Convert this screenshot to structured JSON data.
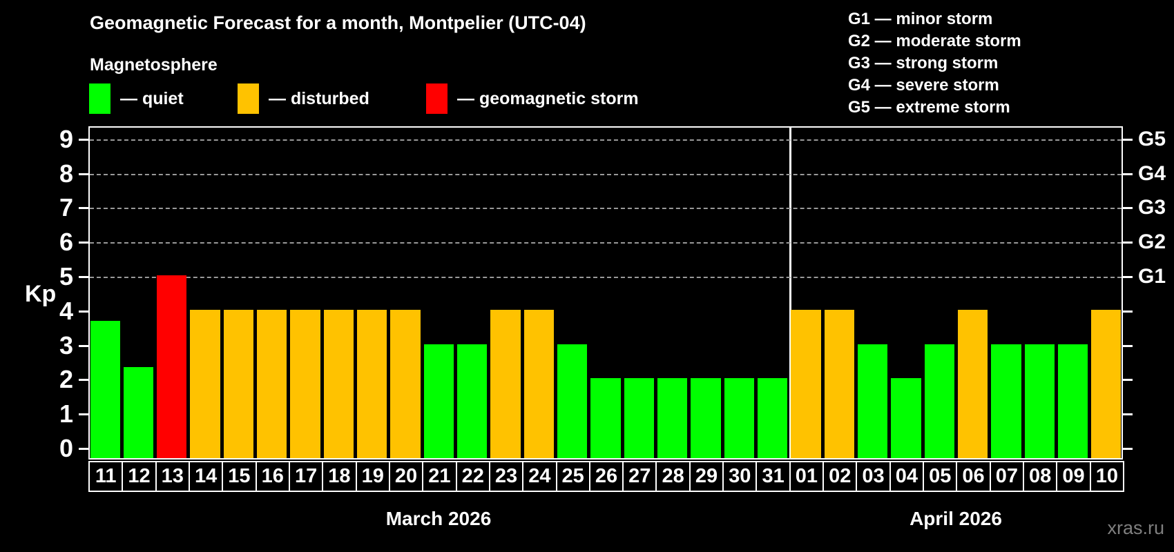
{
  "title": "Geomagnetic Forecast for a month, Montpelier (UTC-04)",
  "subtitle": "Magnetosphere",
  "watermark": "xras.ru",
  "legend": {
    "items": [
      {
        "state": "quiet",
        "label": "— quiet",
        "color": "#00ff00"
      },
      {
        "state": "disturbed",
        "label": "— disturbed",
        "color": "#ffc200"
      },
      {
        "state": "storm",
        "label": "— geomagnetic storm",
        "color": "#ff0000"
      }
    ]
  },
  "g_legend": {
    "items": [
      "G1 — minor storm",
      "G2 — moderate storm",
      "G3 — strong storm",
      "G4 — severe storm",
      "G5 — extreme storm"
    ]
  },
  "chart_data": {
    "type": "bar",
    "title": "Geomagnetic Forecast for a month, Montpelier (UTC-04)",
    "subtitle": "Magnetosphere",
    "ylabel": "Kp",
    "ylim": [
      0,
      9
    ],
    "yticks": [
      0,
      1,
      2,
      3,
      4,
      5,
      6,
      7,
      8,
      9
    ],
    "grid_levels": [
      5,
      6,
      7,
      8,
      9
    ],
    "grid": "dashed horizontal at G-storm levels only",
    "legend_position": "top-left",
    "right_axis": [
      {
        "kp": 5,
        "label": "G1"
      },
      {
        "kp": 6,
        "label": "G2"
      },
      {
        "kp": 7,
        "label": "G3"
      },
      {
        "kp": 8,
        "label": "G4"
      },
      {
        "kp": 9,
        "label": "G5"
      }
    ],
    "colors": {
      "quiet": "#00ff00",
      "disturbed": "#ffc200",
      "storm": "#ff0000"
    },
    "months": [
      {
        "label": "March 2026",
        "days": 21
      },
      {
        "label": "April 2026",
        "days": 10
      }
    ],
    "bars": [
      {
        "day": "11",
        "kp": 3.67,
        "state": "quiet"
      },
      {
        "day": "12",
        "kp": 2.33,
        "state": "quiet"
      },
      {
        "day": "13",
        "kp": 5,
        "state": "storm"
      },
      {
        "day": "14",
        "kp": 4,
        "state": "disturbed"
      },
      {
        "day": "15",
        "kp": 4,
        "state": "disturbed"
      },
      {
        "day": "16",
        "kp": 4,
        "state": "disturbed"
      },
      {
        "day": "17",
        "kp": 4,
        "state": "disturbed"
      },
      {
        "day": "18",
        "kp": 4,
        "state": "disturbed"
      },
      {
        "day": "19",
        "kp": 4,
        "state": "disturbed"
      },
      {
        "day": "20",
        "kp": 4,
        "state": "disturbed"
      },
      {
        "day": "21",
        "kp": 3,
        "state": "quiet"
      },
      {
        "day": "22",
        "kp": 3,
        "state": "quiet"
      },
      {
        "day": "23",
        "kp": 4,
        "state": "disturbed"
      },
      {
        "day": "24",
        "kp": 4,
        "state": "disturbed"
      },
      {
        "day": "25",
        "kp": 3,
        "state": "quiet"
      },
      {
        "day": "26",
        "kp": 2,
        "state": "quiet"
      },
      {
        "day": "27",
        "kp": 2,
        "state": "quiet"
      },
      {
        "day": "28",
        "kp": 2,
        "state": "quiet"
      },
      {
        "day": "29",
        "kp": 2,
        "state": "quiet"
      },
      {
        "day": "30",
        "kp": 2,
        "state": "quiet"
      },
      {
        "day": "31",
        "kp": 2,
        "state": "quiet"
      },
      {
        "day": "01",
        "kp": 4,
        "state": "disturbed"
      },
      {
        "day": "02",
        "kp": 4,
        "state": "disturbed"
      },
      {
        "day": "03",
        "kp": 3,
        "state": "quiet"
      },
      {
        "day": "04",
        "kp": 2,
        "state": "quiet"
      },
      {
        "day": "05",
        "kp": 3,
        "state": "quiet"
      },
      {
        "day": "06",
        "kp": 4,
        "state": "disturbed"
      },
      {
        "day": "07",
        "kp": 3,
        "state": "quiet"
      },
      {
        "day": "08",
        "kp": 3,
        "state": "quiet"
      },
      {
        "day": "09",
        "kp": 3,
        "state": "quiet"
      },
      {
        "day": "10",
        "kp": 4,
        "state": "disturbed"
      }
    ]
  }
}
